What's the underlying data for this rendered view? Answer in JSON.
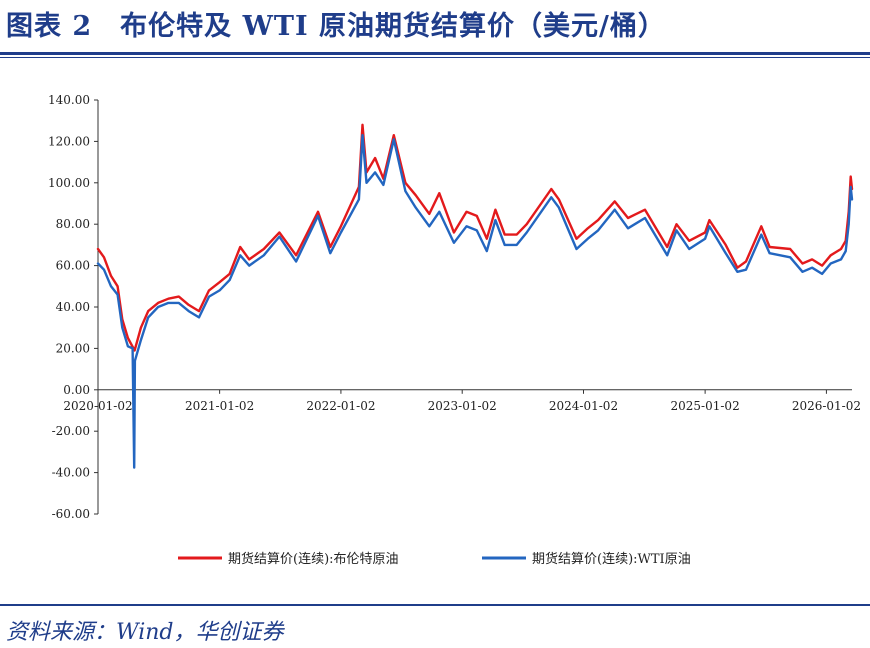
{
  "header": {
    "title": "图表 2　布伦特及 WTI 原油期货结算价（美元/桶）"
  },
  "footer": {
    "source": "资料来源：Wind，华创证券"
  },
  "colors": {
    "brand": "#1f3d8a",
    "brent": "#e31a1c",
    "wti": "#2366c0"
  },
  "chart_data": {
    "type": "line",
    "title": "",
    "xlabel": "",
    "ylabel": "",
    "ylim": [
      -60,
      140
    ],
    "yticks": [
      140,
      120,
      100,
      80,
      60,
      40,
      20,
      0,
      -20,
      -40,
      -60
    ],
    "ytick_labels": [
      "140.00",
      "120.00",
      "100.00",
      "80.00",
      "60.00",
      "40.00",
      "20.00",
      "0.00",
      "-20.00",
      "-40.00",
      "-60.00"
    ],
    "xlim": [
      "2020-01-02",
      "2026-03-20"
    ],
    "xticks": [
      "2020-01-02",
      "2021-01-02",
      "2022-01-02",
      "2023-01-02",
      "2024-01-02",
      "2025-01-02",
      "2026-01-02"
    ],
    "grid": false,
    "legend_position": "bottom",
    "series": [
      {
        "name": "期货结算价(连续):布伦特原油",
        "points": [
          [
            "2020-01-02",
            68
          ],
          [
            "2020-01-20",
            64
          ],
          [
            "2020-02-10",
            55
          ],
          [
            "2020-03-01",
            50
          ],
          [
            "2020-03-15",
            34
          ],
          [
            "2020-04-01",
            25
          ],
          [
            "2020-04-21",
            19
          ],
          [
            "2020-05-10",
            30
          ],
          [
            "2020-06-01",
            38
          ],
          [
            "2020-07-01",
            42
          ],
          [
            "2020-08-01",
            44
          ],
          [
            "2020-09-01",
            45
          ],
          [
            "2020-10-01",
            41
          ],
          [
            "2020-11-01",
            38
          ],
          [
            "2020-12-01",
            48
          ],
          [
            "2021-01-02",
            52
          ],
          [
            "2021-02-01",
            56
          ],
          [
            "2021-03-05",
            69
          ],
          [
            "2021-04-01",
            63
          ],
          [
            "2021-05-15",
            68
          ],
          [
            "2021-07-01",
            76
          ],
          [
            "2021-08-20",
            65
          ],
          [
            "2021-10-25",
            86
          ],
          [
            "2021-12-01",
            69
          ],
          [
            "2022-01-02",
            79
          ],
          [
            "2022-02-25",
            98
          ],
          [
            "2022-03-08",
            128
          ],
          [
            "2022-03-20",
            105
          ],
          [
            "2022-04-15",
            112
          ],
          [
            "2022-05-10",
            102
          ],
          [
            "2022-06-10",
            123
          ],
          [
            "2022-07-15",
            100
          ],
          [
            "2022-08-15",
            94
          ],
          [
            "2022-09-25",
            85
          ],
          [
            "2022-10-25",
            95
          ],
          [
            "2022-12-08",
            76
          ],
          [
            "2023-01-15",
            86
          ],
          [
            "2023-02-15",
            84
          ],
          [
            "2023-03-17",
            73
          ],
          [
            "2023-04-12",
            87
          ],
          [
            "2023-05-10",
            75
          ],
          [
            "2023-06-15",
            75
          ],
          [
            "2023-07-15",
            80
          ],
          [
            "2023-09-27",
            97
          ],
          [
            "2023-10-20",
            92
          ],
          [
            "2023-12-12",
            73
          ],
          [
            "2024-01-15",
            78
          ],
          [
            "2024-02-15",
            82
          ],
          [
            "2024-04-05",
            91
          ],
          [
            "2024-05-15",
            83
          ],
          [
            "2024-07-05",
            87
          ],
          [
            "2024-09-10",
            69
          ],
          [
            "2024-10-08",
            80
          ],
          [
            "2024-11-15",
            72
          ],
          [
            "2025-01-02",
            76
          ],
          [
            "2025-01-15",
            82
          ],
          [
            "2025-03-05",
            70
          ],
          [
            "2025-04-09",
            59
          ],
          [
            "2025-05-05",
            62
          ],
          [
            "2025-06-20",
            79
          ],
          [
            "2025-07-15",
            69
          ],
          [
            "2025-09-15",
            68
          ],
          [
            "2025-10-22",
            61
          ],
          [
            "2025-11-20",
            63
          ],
          [
            "2025-12-20",
            60
          ],
          [
            "2026-01-15",
            65
          ],
          [
            "2026-02-15",
            68
          ],
          [
            "2026-03-01",
            72
          ],
          [
            "2026-03-10",
            86
          ],
          [
            "2026-03-16",
            103
          ],
          [
            "2026-03-20",
            97
          ]
        ]
      },
      {
        "name": "期货结算价(连续):WTI原油",
        "points": [
          [
            "2020-01-02",
            61
          ],
          [
            "2020-01-20",
            58
          ],
          [
            "2020-02-10",
            50
          ],
          [
            "2020-03-01",
            46
          ],
          [
            "2020-03-15",
            30
          ],
          [
            "2020-04-01",
            21
          ],
          [
            "2020-04-15",
            20
          ],
          [
            "2020-04-20",
            -37.6
          ],
          [
            "2020-04-22",
            14
          ],
          [
            "2020-05-10",
            24
          ],
          [
            "2020-06-01",
            35
          ],
          [
            "2020-07-01",
            40
          ],
          [
            "2020-08-01",
            42
          ],
          [
            "2020-09-01",
            42
          ],
          [
            "2020-10-01",
            38
          ],
          [
            "2020-11-01",
            35
          ],
          [
            "2020-12-01",
            45
          ],
          [
            "2021-01-02",
            48
          ],
          [
            "2021-02-01",
            53
          ],
          [
            "2021-03-05",
            65
          ],
          [
            "2021-04-01",
            60
          ],
          [
            "2021-05-15",
            65
          ],
          [
            "2021-07-01",
            74
          ],
          [
            "2021-08-20",
            62
          ],
          [
            "2021-10-25",
            84
          ],
          [
            "2021-12-01",
            66
          ],
          [
            "2022-01-02",
            76
          ],
          [
            "2022-02-25",
            92
          ],
          [
            "2022-03-08",
            123
          ],
          [
            "2022-03-20",
            100
          ],
          [
            "2022-04-15",
            105
          ],
          [
            "2022-05-10",
            99
          ],
          [
            "2022-06-10",
            121
          ],
          [
            "2022-07-15",
            96
          ],
          [
            "2022-08-15",
            88
          ],
          [
            "2022-09-25",
            79
          ],
          [
            "2022-10-25",
            86
          ],
          [
            "2022-12-08",
            71
          ],
          [
            "2023-01-15",
            79
          ],
          [
            "2023-02-15",
            77
          ],
          [
            "2023-03-17",
            67
          ],
          [
            "2023-04-12",
            82
          ],
          [
            "2023-05-10",
            70
          ],
          [
            "2023-06-15",
            70
          ],
          [
            "2023-07-15",
            76
          ],
          [
            "2023-09-27",
            93
          ],
          [
            "2023-10-20",
            88
          ],
          [
            "2023-12-12",
            68
          ],
          [
            "2024-01-15",
            73
          ],
          [
            "2024-02-15",
            77
          ],
          [
            "2024-04-05",
            87
          ],
          [
            "2024-05-15",
            78
          ],
          [
            "2024-07-05",
            83
          ],
          [
            "2024-09-10",
            65
          ],
          [
            "2024-10-08",
            77
          ],
          [
            "2024-11-15",
            68
          ],
          [
            "2025-01-02",
            73
          ],
          [
            "2025-01-15",
            79
          ],
          [
            "2025-03-05",
            66
          ],
          [
            "2025-04-09",
            57
          ],
          [
            "2025-05-05",
            58
          ],
          [
            "2025-06-20",
            75
          ],
          [
            "2025-07-15",
            66
          ],
          [
            "2025-09-15",
            64
          ],
          [
            "2025-10-22",
            57
          ],
          [
            "2025-11-20",
            59
          ],
          [
            "2025-12-20",
            56
          ],
          [
            "2026-01-15",
            61
          ],
          [
            "2026-02-15",
            63
          ],
          [
            "2026-03-01",
            67
          ],
          [
            "2026-03-10",
            80
          ],
          [
            "2026-03-16",
            98
          ],
          [
            "2026-03-20",
            92
          ]
        ]
      }
    ]
  }
}
